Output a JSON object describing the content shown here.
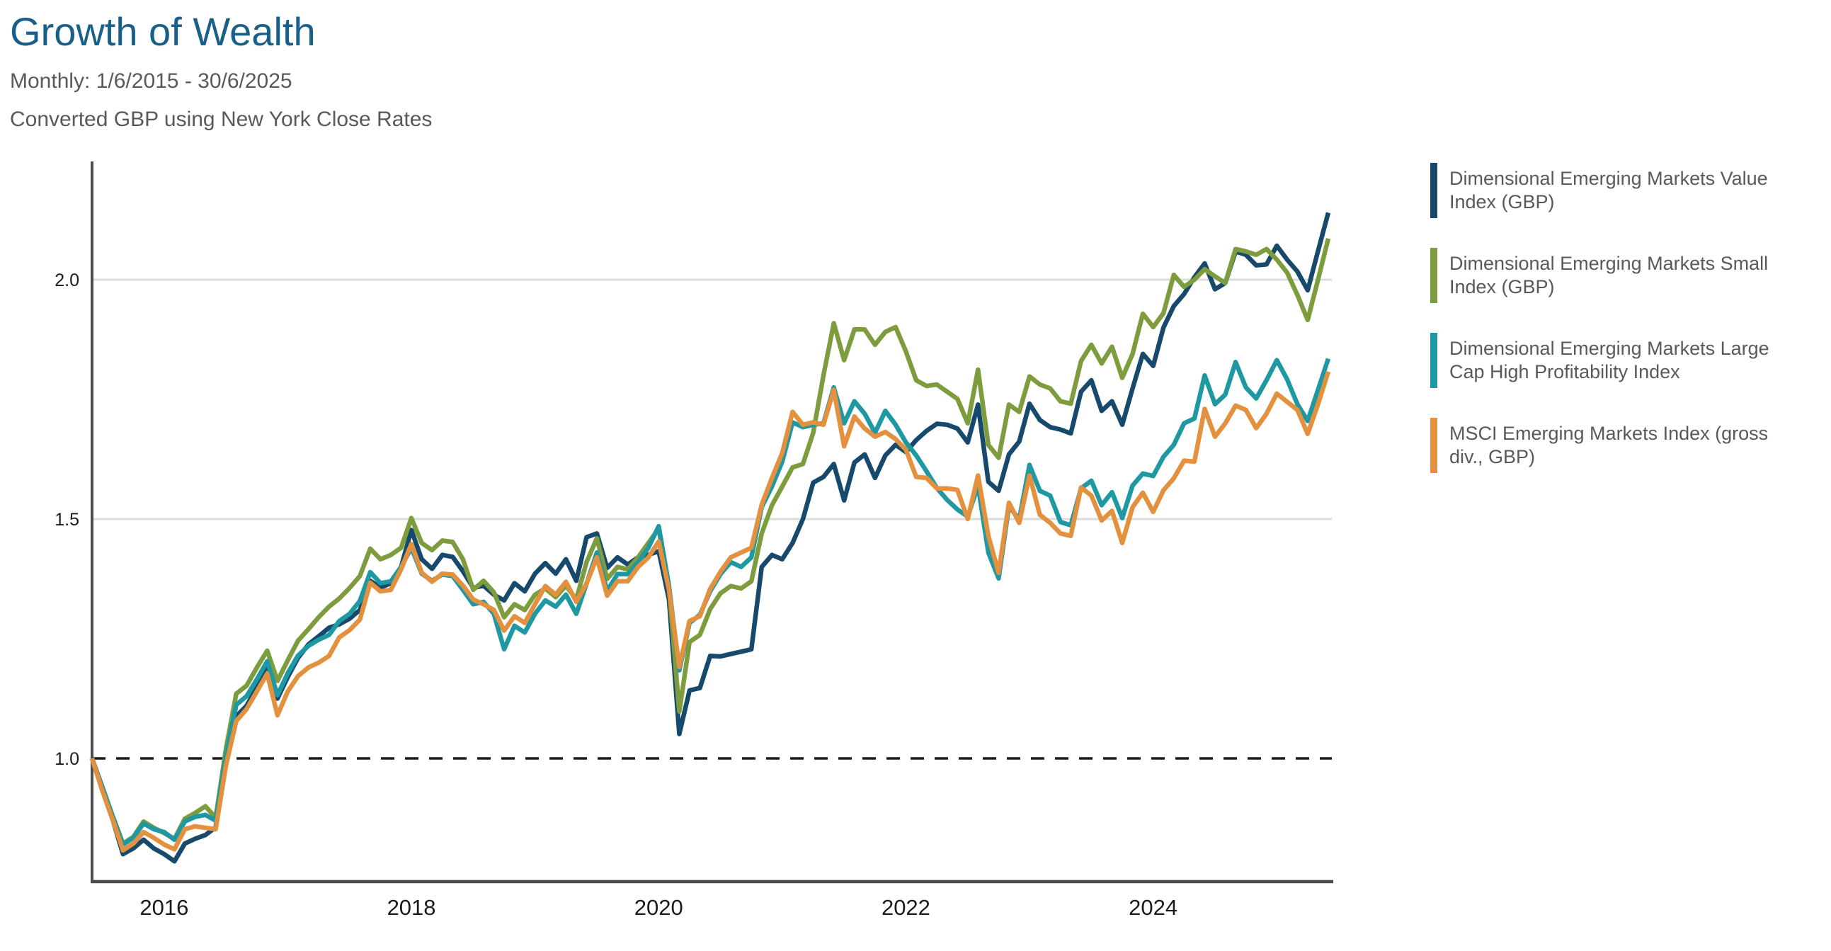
{
  "header": {
    "title": "Growth of Wealth",
    "subtitle1": "Monthly: 1/6/2015 - 30/6/2025",
    "subtitle2": "Converted GBP using New York Close Rates"
  },
  "colors": {
    "title": "#186089",
    "subtitle": "#58595B",
    "axis": "#4D4D4F",
    "gridline": "#DCDCDC",
    "baseline_dash": "#1C1C1C",
    "tick_text": "#1A1A1A",
    "legend_text": "#58595B"
  },
  "legend": {
    "items": [
      {
        "label": "Dimensional Emerging Markets Value Index (GBP)",
        "color": "#16496B"
      },
      {
        "label": "Dimensional Emerging Markets Small Index (GBP)",
        "color": "#7D9C3D"
      },
      {
        "label": "Dimensional Emerging Markets Large Cap High Profitability Index",
        "color": "#1E98A2"
      },
      {
        "label": "MSCI Emerging Markets Index (gross div., GBP)",
        "color": "#E3913E"
      }
    ]
  },
  "chart_data": {
    "type": "line",
    "title": "Growth of Wealth",
    "subtitle": "Monthly: 1/6/2015 - 30/6/2025",
    "note": "Converted GBP using New York Close Rates",
    "x_frequency": "monthly",
    "x_start": "2015-06",
    "x_end": "2025-06",
    "ylim": [
      0.746,
      2.247
    ],
    "grid": "horizontal-only",
    "legend_position": "right",
    "baseline": {
      "value": 1.0,
      "style": "dashed-black"
    },
    "y_ticks": [
      {
        "label": "2.0",
        "value": 2.0,
        "grid": "solid"
      },
      {
        "label": "1.5",
        "value": 1.5,
        "grid": "solid"
      },
      {
        "label": "1.0",
        "value": 1.0,
        "grid": "dashed"
      }
    ],
    "x_ticks": [
      {
        "label": "2016",
        "month_index": 7
      },
      {
        "label": "2018",
        "month_index": 31
      },
      {
        "label": "2020",
        "month_index": 55
      },
      {
        "label": "2022",
        "month_index": 79
      },
      {
        "label": "2024",
        "month_index": 103
      }
    ],
    "dates": [
      "2015-06",
      "2015-07",
      "2015-08",
      "2015-09",
      "2015-10",
      "2015-11",
      "2015-12",
      "2016-01",
      "2016-02",
      "2016-03",
      "2016-04",
      "2016-05",
      "2016-06",
      "2016-07",
      "2016-08",
      "2016-09",
      "2016-10",
      "2016-11",
      "2016-12",
      "2017-01",
      "2017-02",
      "2017-03",
      "2017-04",
      "2017-05",
      "2017-06",
      "2017-07",
      "2017-08",
      "2017-09",
      "2017-10",
      "2017-11",
      "2017-12",
      "2018-01",
      "2018-02",
      "2018-03",
      "2018-04",
      "2018-05",
      "2018-06",
      "2018-07",
      "2018-08",
      "2018-09",
      "2018-10",
      "2018-11",
      "2018-12",
      "2019-01",
      "2019-02",
      "2019-03",
      "2019-04",
      "2019-05",
      "2019-06",
      "2019-07",
      "2019-08",
      "2019-09",
      "2019-10",
      "2019-11",
      "2019-12",
      "2020-01",
      "2020-02",
      "2020-03",
      "2020-04",
      "2020-05",
      "2020-06",
      "2020-07",
      "2020-08",
      "2020-09",
      "2020-10",
      "2020-11",
      "2020-12",
      "2021-01",
      "2021-02",
      "2021-03",
      "2021-04",
      "2021-05",
      "2021-06",
      "2021-07",
      "2021-08",
      "2021-09",
      "2021-10",
      "2021-11",
      "2021-12",
      "2022-01",
      "2022-02",
      "2022-03",
      "2022-04",
      "2022-05",
      "2022-06",
      "2022-07",
      "2022-08",
      "2022-09",
      "2022-10",
      "2022-11",
      "2022-12",
      "2023-01",
      "2023-02",
      "2023-03",
      "2023-04",
      "2023-05",
      "2023-06",
      "2023-07",
      "2023-08",
      "2023-09",
      "2023-10",
      "2023-11",
      "2023-12",
      "2024-01",
      "2024-02",
      "2024-03",
      "2024-04",
      "2024-05",
      "2024-06",
      "2024-07",
      "2024-08",
      "2024-09",
      "2024-10",
      "2024-11",
      "2024-12",
      "2025-01",
      "2025-02",
      "2025-03",
      "2025-04",
      "2025-05",
      "2025-06"
    ],
    "series": [
      {
        "name": "Dimensional Emerging Markets Value Index (GBP)",
        "color": "#16496B",
        "values": [
          1.0,
          0.934,
          0.872,
          0.8,
          0.812,
          0.83,
          0.812,
          0.8,
          0.785,
          0.822,
          0.832,
          0.84,
          0.856,
          0.995,
          1.088,
          1.11,
          1.148,
          1.198,
          1.125,
          1.17,
          1.21,
          1.238,
          1.255,
          1.273,
          1.28,
          1.292,
          1.31,
          1.371,
          1.357,
          1.366,
          1.4,
          1.477,
          1.416,
          1.396,
          1.425,
          1.421,
          1.391,
          1.356,
          1.361,
          1.342,
          1.33,
          1.366,
          1.349,
          1.386,
          1.408,
          1.386,
          1.416,
          1.371,
          1.462,
          1.47,
          1.398,
          1.42,
          1.405,
          1.42,
          1.425,
          1.433,
          1.332,
          1.051,
          1.142,
          1.147,
          1.214,
          1.213,
          1.218,
          1.223,
          1.228,
          1.4,
          1.425,
          1.416,
          1.45,
          1.5,
          1.576,
          1.588,
          1.615,
          1.539,
          1.618,
          1.635,
          1.586,
          1.633,
          1.655,
          1.64,
          1.665,
          1.684,
          1.699,
          1.697,
          1.689,
          1.66,
          1.739,
          1.578,
          1.559,
          1.635,
          1.662,
          1.741,
          1.707,
          1.692,
          1.687,
          1.679,
          1.766,
          1.79,
          1.726,
          1.746,
          1.697,
          1.773,
          1.845,
          1.82,
          1.9,
          1.945,
          1.97,
          2.005,
          2.034,
          1.98,
          1.993,
          2.059,
          2.052,
          2.03,
          2.032,
          2.071,
          2.042,
          2.017,
          1.978,
          2.06,
          2.14
        ]
      },
      {
        "name": "Dimensional Emerging Markets Small Index (GBP)",
        "color": "#7D9C3D",
        "values": [
          1.0,
          0.94,
          0.88,
          0.822,
          0.836,
          0.868,
          0.855,
          0.844,
          0.832,
          0.874,
          0.886,
          0.9,
          0.876,
          1.02,
          1.135,
          1.152,
          1.19,
          1.225,
          1.162,
          1.205,
          1.246,
          1.27,
          1.295,
          1.317,
          1.334,
          1.356,
          1.381,
          1.438,
          1.416,
          1.425,
          1.44,
          1.502,
          1.45,
          1.435,
          1.455,
          1.452,
          1.416,
          1.352,
          1.371,
          1.347,
          1.295,
          1.322,
          1.31,
          1.342,
          1.355,
          1.337,
          1.361,
          1.332,
          1.41,
          1.46,
          1.375,
          1.4,
          1.395,
          1.42,
          1.45,
          1.48,
          1.357,
          1.098,
          1.243,
          1.258,
          1.312,
          1.345,
          1.36,
          1.355,
          1.37,
          1.47,
          1.529,
          1.568,
          1.608,
          1.615,
          1.68,
          1.8,
          1.909,
          1.832,
          1.896,
          1.896,
          1.864,
          1.891,
          1.901,
          1.85,
          1.79,
          1.778,
          1.781,
          1.766,
          1.751,
          1.7,
          1.812,
          1.655,
          1.628,
          1.739,
          1.724,
          1.798,
          1.781,
          1.773,
          1.746,
          1.741,
          1.83,
          1.864,
          1.825,
          1.86,
          1.795,
          1.845,
          1.929,
          1.901,
          1.93,
          2.01,
          1.985,
          2.0,
          2.022,
          2.007,
          1.993,
          2.064,
          2.059,
          2.052,
          2.064,
          2.042,
          2.015,
          1.968,
          1.916,
          2.0,
          2.086
        ]
      },
      {
        "name": "Dimensional Emerging Markets Large Cap High Profitability Index",
        "color": "#1E98A2",
        "values": [
          1.0,
          0.94,
          0.878,
          0.82,
          0.834,
          0.864,
          0.852,
          0.846,
          0.83,
          0.868,
          0.878,
          0.882,
          0.87,
          1.005,
          1.112,
          1.13,
          1.165,
          1.203,
          1.132,
          1.178,
          1.215,
          1.235,
          1.248,
          1.258,
          1.287,
          1.302,
          1.329,
          1.389,
          1.366,
          1.37,
          1.4,
          1.44,
          1.386,
          1.371,
          1.384,
          1.381,
          1.352,
          1.322,
          1.327,
          1.302,
          1.228,
          1.277,
          1.263,
          1.302,
          1.33,
          1.317,
          1.342,
          1.302,
          1.365,
          1.43,
          1.35,
          1.385,
          1.385,
          1.41,
          1.44,
          1.485,
          1.361,
          1.184,
          1.283,
          1.3,
          1.349,
          1.385,
          1.41,
          1.4,
          1.42,
          1.525,
          1.568,
          1.62,
          1.702,
          1.692,
          1.697,
          1.7,
          1.775,
          1.7,
          1.746,
          1.72,
          1.68,
          1.726,
          1.697,
          1.66,
          1.633,
          1.6,
          1.565,
          1.54,
          1.52,
          1.505,
          1.57,
          1.43,
          1.376,
          1.527,
          1.499,
          1.613,
          1.559,
          1.549,
          1.494,
          1.487,
          1.564,
          1.58,
          1.529,
          1.556,
          1.502,
          1.57,
          1.595,
          1.59,
          1.63,
          1.655,
          1.7,
          1.71,
          1.8,
          1.74,
          1.76,
          1.828,
          1.775,
          1.752,
          1.79,
          1.832,
          1.792,
          1.74,
          1.705,
          1.77,
          1.835
        ]
      },
      {
        "name": "MSCI Emerging Markets Index (gross div., GBP)",
        "color": "#E3913E",
        "values": [
          1.0,
          0.932,
          0.872,
          0.808,
          0.822,
          0.846,
          0.834,
          0.82,
          0.81,
          0.852,
          0.858,
          0.855,
          0.852,
          0.985,
          1.078,
          1.103,
          1.14,
          1.177,
          1.09,
          1.14,
          1.172,
          1.19,
          1.2,
          1.214,
          1.253,
          1.268,
          1.29,
          1.367,
          1.349,
          1.352,
          1.395,
          1.448,
          1.388,
          1.369,
          1.386,
          1.384,
          1.361,
          1.332,
          1.322,
          1.31,
          1.267,
          1.297,
          1.283,
          1.322,
          1.36,
          1.342,
          1.369,
          1.327,
          1.365,
          1.42,
          1.34,
          1.37,
          1.37,
          1.4,
          1.42,
          1.453,
          1.352,
          1.191,
          1.287,
          1.297,
          1.354,
          1.39,
          1.42,
          1.43,
          1.44,
          1.53,
          1.586,
          1.638,
          1.724,
          1.697,
          1.702,
          1.697,
          1.77,
          1.652,
          1.714,
          1.689,
          1.672,
          1.682,
          1.667,
          1.645,
          1.588,
          1.586,
          1.564,
          1.564,
          1.561,
          1.5,
          1.591,
          1.465,
          1.388,
          1.534,
          1.492,
          1.591,
          1.509,
          1.492,
          1.47,
          1.465,
          1.566,
          1.549,
          1.497,
          1.517,
          1.45,
          1.525,
          1.555,
          1.515,
          1.56,
          1.585,
          1.622,
          1.62,
          1.73,
          1.672,
          1.7,
          1.737,
          1.728,
          1.69,
          1.72,
          1.762,
          1.745,
          1.728,
          1.678,
          1.74,
          1.808
        ]
      }
    ]
  }
}
